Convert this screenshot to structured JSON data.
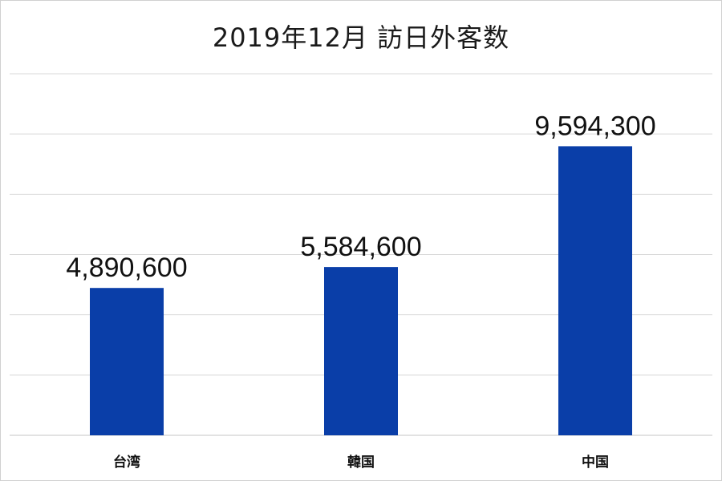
{
  "chart_data": {
    "type": "bar",
    "title": "2019年12月 訪日外客数",
    "xlabel": "",
    "ylabel": "",
    "categories": [
      "台湾",
      "韓国",
      "中国"
    ],
    "values": [
      4890600,
      5584600,
      9594300
    ],
    "value_labels": [
      "4,890,600",
      "5,584,600",
      "9,594,300"
    ],
    "ylim": [
      0,
      12000000
    ],
    "grid": true,
    "legend": "none",
    "bar_color": "#0a3ea8",
    "grid_color": "#d9d9d9"
  }
}
